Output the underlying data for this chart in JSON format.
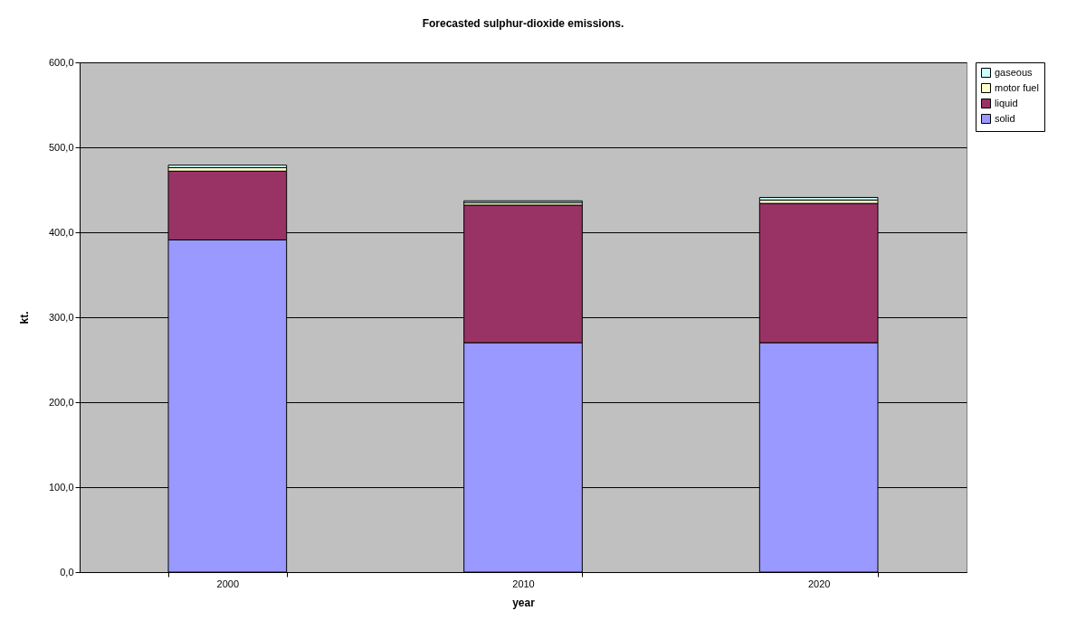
{
  "chart_data": {
    "type": "bar",
    "title": "Forecasted sulphur-dioxide emissions.",
    "xlabel": "year",
    "ylabel": "kt.",
    "categories": [
      "2000",
      "2010",
      "2020"
    ],
    "stacked": true,
    "series": [
      {
        "name": "solid",
        "color": "#9999ff",
        "values": [
          391,
          270,
          270
        ]
      },
      {
        "name": "liquid",
        "color": "#993366",
        "values": [
          81,
          162,
          164
        ]
      },
      {
        "name": "motor fuel",
        "color": "#ffffcc",
        "values": [
          4,
          3,
          4
        ]
      },
      {
        "name": "gaseous",
        "color": "#ccffff",
        "values": [
          3,
          2,
          3
        ]
      }
    ],
    "ylim": [
      0,
      600
    ],
    "yticks": [
      {
        "value": 0,
        "label": "0,0"
      },
      {
        "value": 100,
        "label": "100,0"
      },
      {
        "value": 200,
        "label": "200,0"
      },
      {
        "value": 300,
        "label": "300,0"
      },
      {
        "value": 400,
        "label": "400,0"
      },
      {
        "value": 500,
        "label": "500,0"
      },
      {
        "value": 600,
        "label": "600,0"
      }
    ],
    "grid": "y",
    "legend": "right"
  }
}
